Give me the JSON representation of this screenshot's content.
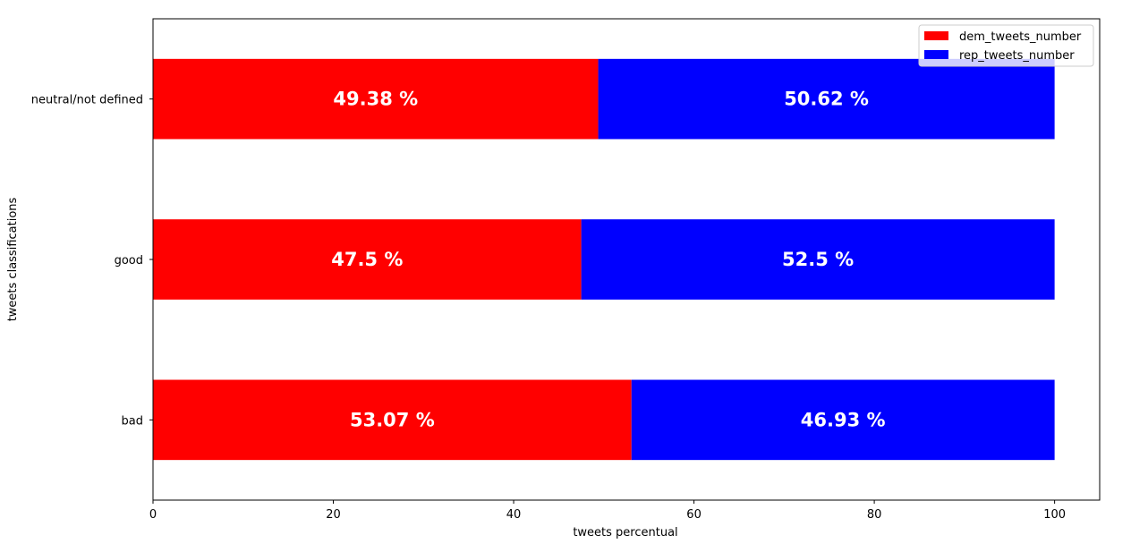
{
  "chart_data": {
    "type": "bar",
    "orientation": "horizontal",
    "stacked": true,
    "title": "",
    "xlabel": "tweets percentual",
    "ylabel": "tweets classifications",
    "xlim": [
      0,
      105
    ],
    "xticks": [
      0,
      20,
      40,
      60,
      80,
      100
    ],
    "grid": false,
    "legend_position": "top-right",
    "categories": [
      "bad",
      "good",
      "neutral/not defined"
    ],
    "series": [
      {
        "name": "dem_tweets_number",
        "color": "#ff0000",
        "values": [
          53.07,
          47.5,
          49.38
        ],
        "labels": [
          "53.07 %",
          "47.5 %",
          "49.38 %"
        ]
      },
      {
        "name": "rep_tweets_number",
        "color": "#0000ff",
        "values": [
          46.93,
          52.5,
          50.62
        ],
        "labels": [
          "46.93 %",
          "52.5 %",
          "50.62 %"
        ]
      }
    ]
  }
}
